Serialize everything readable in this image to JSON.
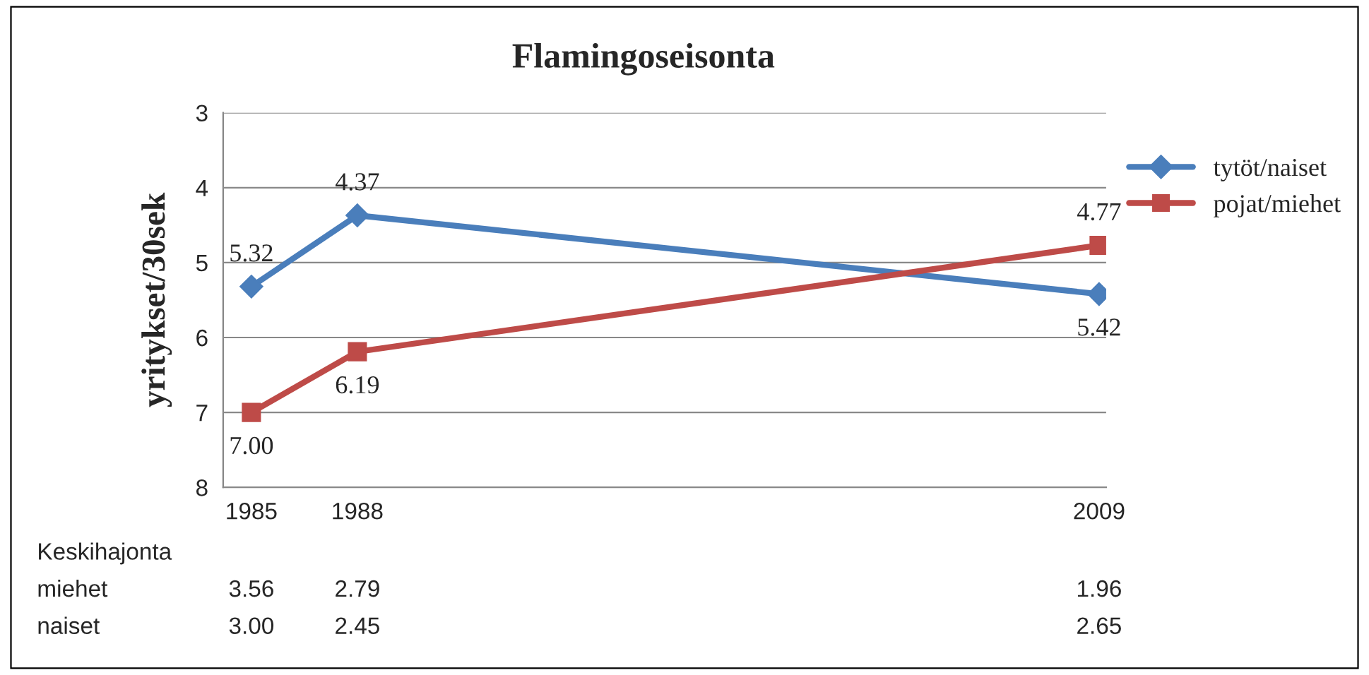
{
  "chart_data": {
    "type": "line",
    "title": "Flamingoseisonta",
    "ylabel": "yritykset/30sek",
    "x": [
      1985,
      1988,
      2009
    ],
    "xlim": [
      1984.2,
      2009.2
    ],
    "xticks": [
      1985,
      1988,
      2009
    ],
    "ylim": [
      8,
      3
    ],
    "yticks": [
      3,
      4,
      5,
      6,
      7,
      8
    ],
    "grid": "y",
    "legend": "right",
    "series": [
      {
        "name": "tytöt/naiset",
        "color": "#4a7ebb",
        "marker": "diamond",
        "values": [
          5.32,
          4.37,
          5.42
        ],
        "value_labels": [
          "5.32",
          "4.37",
          "5.42"
        ]
      },
      {
        "name": "pojat/miehet",
        "color": "#be4b48",
        "marker": "square",
        "values": [
          7.0,
          6.19,
          4.77
        ],
        "value_labels": [
          "7.00",
          "6.19",
          "4.77"
        ]
      }
    ],
    "annotations": [
      "Keskihajonta",
      "miehet",
      "3.56",
      "2.79",
      "1.96",
      "naiset",
      "3.00",
      "2.45",
      "2.65"
    ]
  }
}
